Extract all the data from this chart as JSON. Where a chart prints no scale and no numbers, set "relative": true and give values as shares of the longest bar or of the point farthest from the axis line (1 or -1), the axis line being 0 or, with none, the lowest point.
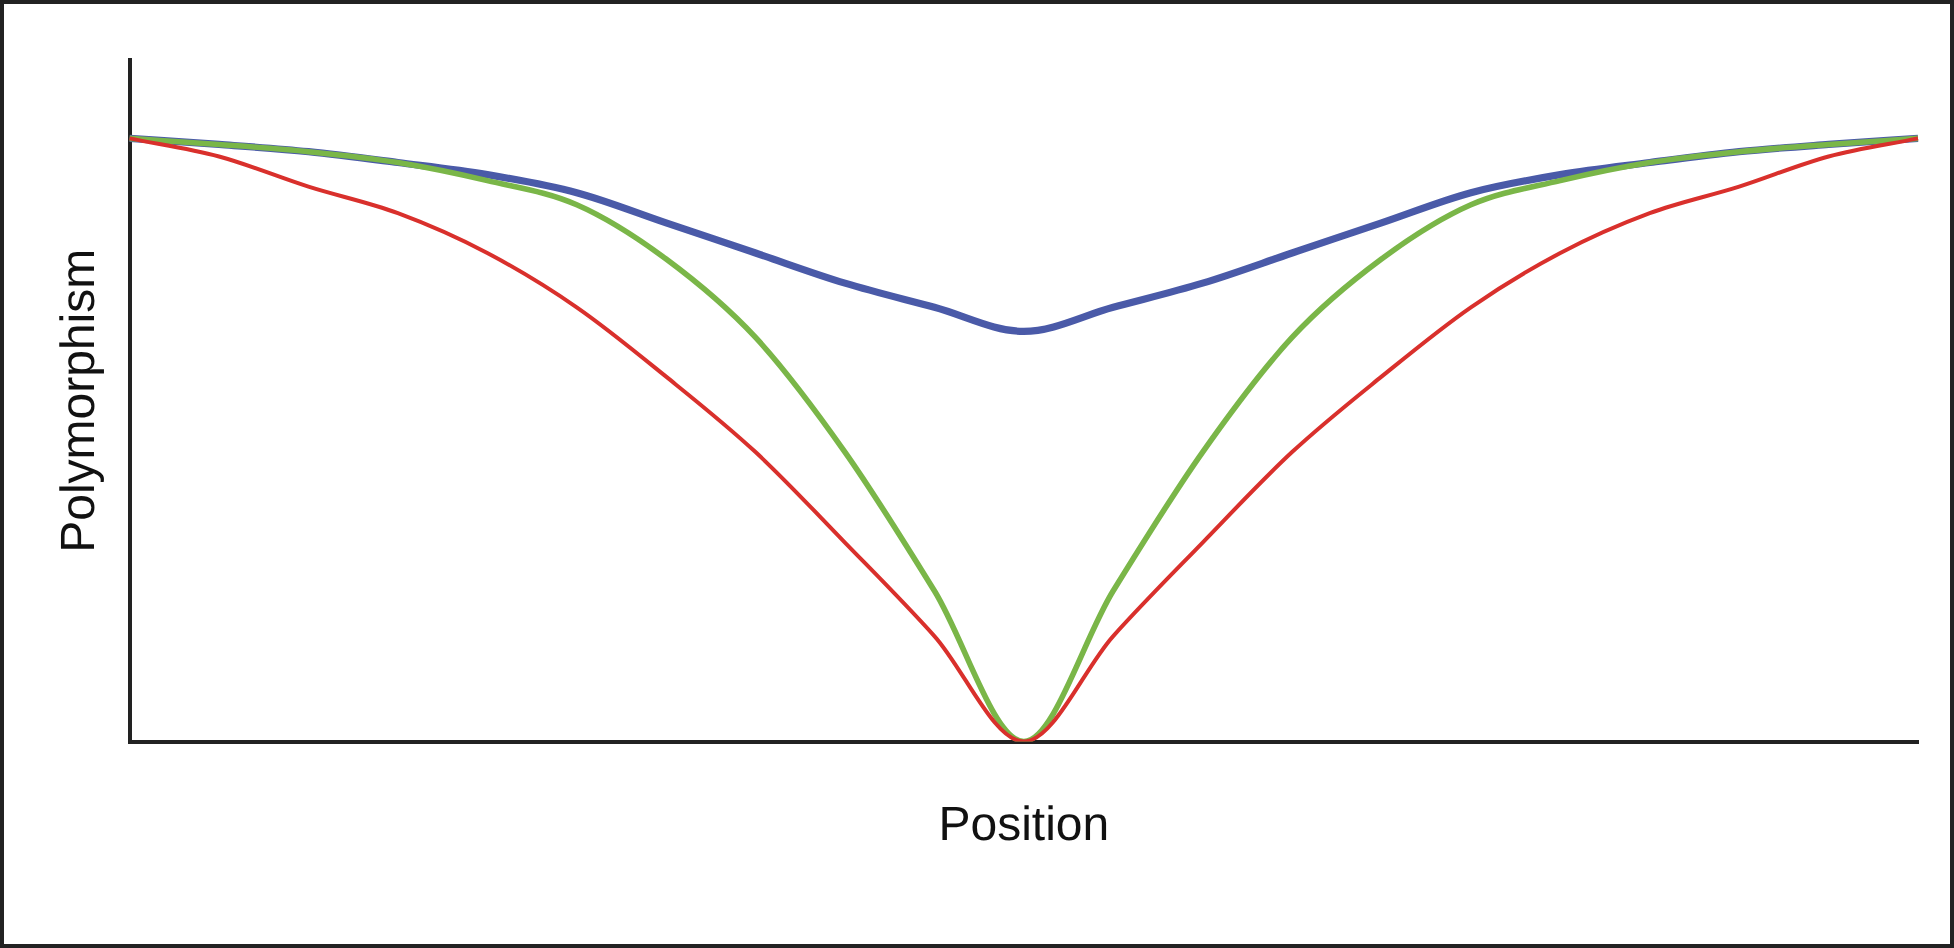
{
  "chart_data": {
    "type": "line",
    "relative": true,
    "xlabel": "Position",
    "ylabel": "Polymorphism",
    "legend": false,
    "grid": false,
    "marker": "none",
    "line_style": "solid",
    "categories": [
      null,
      null,
      null,
      null,
      null,
      null,
      null,
      null,
      null,
      null,
      null,
      null,
      null,
      null,
      null,
      null,
      null,
      null,
      null,
      null,
      null
    ],
    "series": [
      {
        "color": "#d9302c",
        "values": [
          1,
          0.97,
          0.92,
          0.876,
          0.81,
          0.72,
          0.605,
          0.48,
          0.33,
          0.175,
          0,
          0.175,
          0.33,
          0.48,
          0.605,
          0.72,
          0.81,
          0.876,
          0.92,
          0.97,
          1
        ]
      },
      {
        "color": "#7ab648",
        "values": [
          1,
          0.99,
          0.978,
          0.96,
          0.93,
          0.89,
          0.8,
          0.67,
          0.48,
          0.25,
          0,
          0.25,
          0.48,
          0.67,
          0.8,
          0.89,
          0.93,
          0.96,
          0.978,
          0.99,
          1
        ]
      },
      {
        "color": "#4a5aa8",
        "values": [
          1,
          0.99,
          0.978,
          0.96,
          0.94,
          0.91,
          0.86,
          0.81,
          0.76,
          0.72,
          0.68,
          0.72,
          0.76,
          0.81,
          0.86,
          0.91,
          0.94,
          0.96,
          0.978,
          0.99,
          1
        ]
      }
    ]
  }
}
